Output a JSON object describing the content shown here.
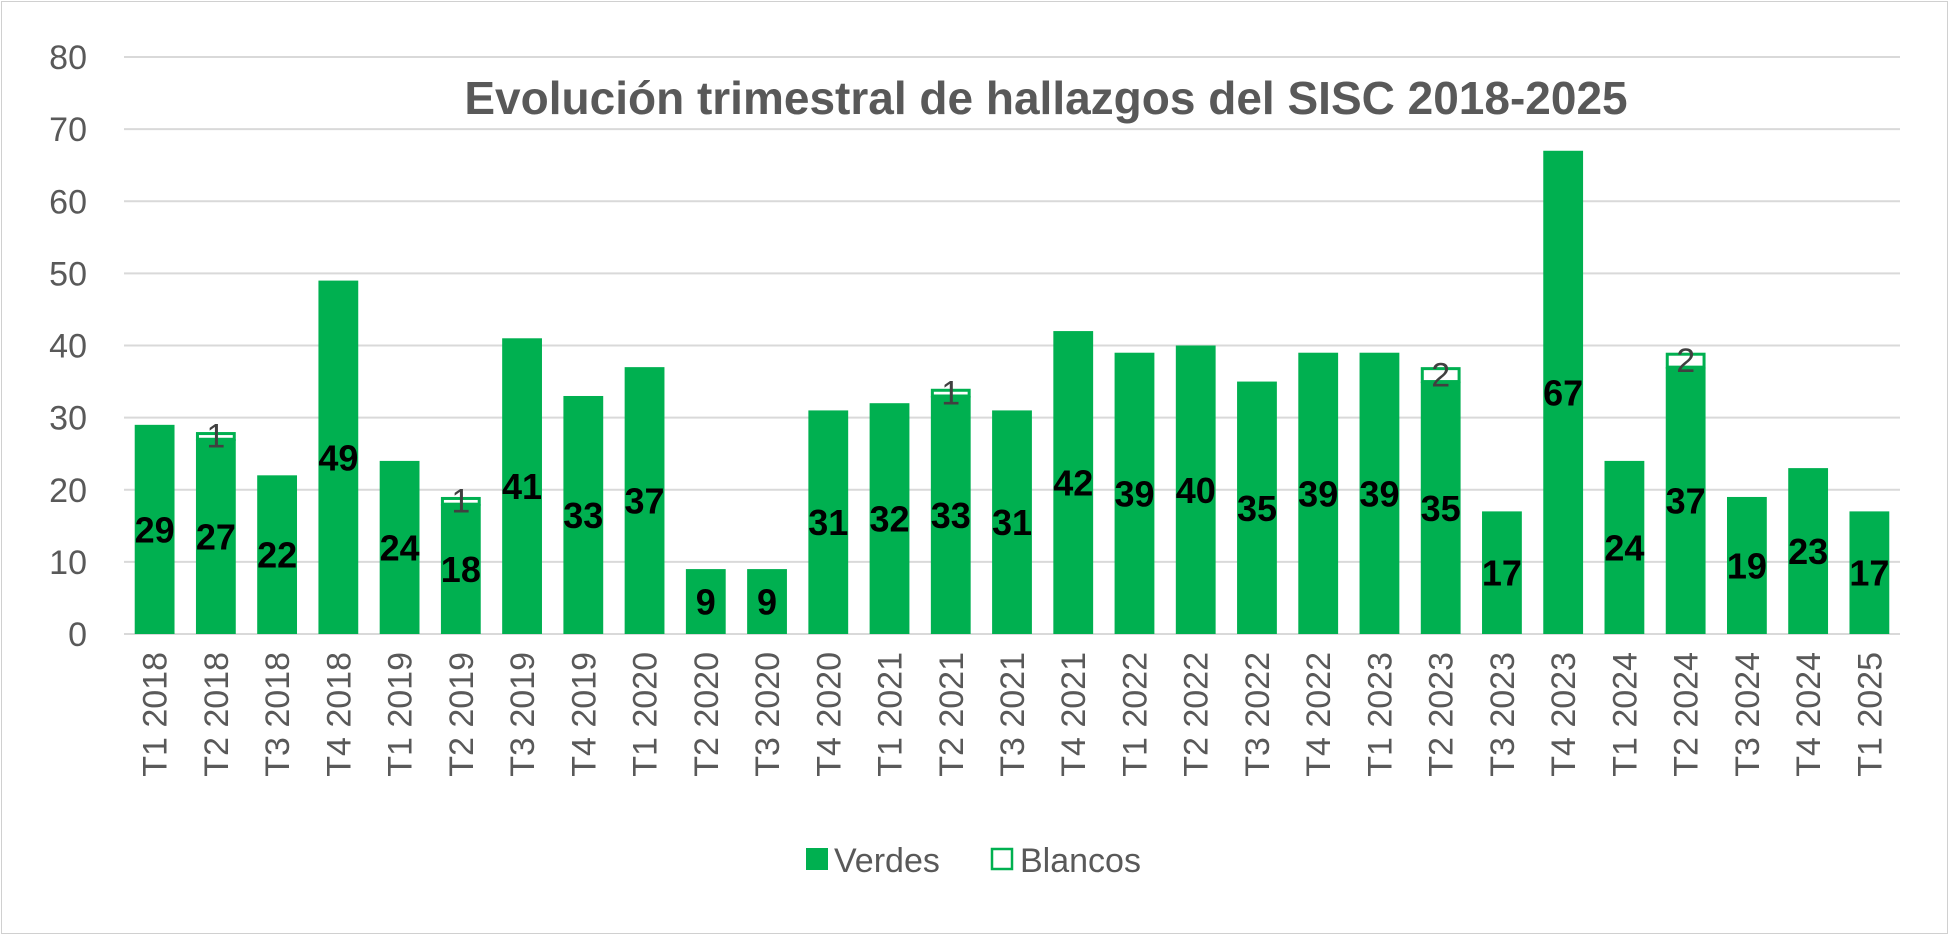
{
  "chart_data": {
    "type": "bar",
    "stacked": true,
    "title": "Evolución trimestral de hallazgos del SISC 2018-2025",
    "xlabel": "",
    "ylabel": "",
    "ylim": [
      0,
      80
    ],
    "yticks": [
      0,
      10,
      20,
      30,
      40,
      50,
      60,
      70,
      80
    ],
    "grid": true,
    "legend_position": "bottom",
    "categories": [
      "T1 2018",
      "T2 2018",
      "T3 2018",
      "T4 2018",
      "T1 2019",
      "T2 2019",
      "T3 2019",
      "T4 2019",
      "T1 2020",
      "T2 2020",
      "T3 2020",
      "T4 2020",
      "T1 2021",
      "T2 2021",
      "T3 2021",
      "T4 2021",
      "T1 2022",
      "T2 2022",
      "T3 2022",
      "T4 2022",
      "T1 2023",
      "T2 2023",
      "T3 2023",
      "T4 2023",
      "T1 2024",
      "T2 2024",
      "T3 2024",
      "T4 2024",
      "T1 2025"
    ],
    "series": [
      {
        "name": "Verdes",
        "color": "#00b050",
        "values": [
          29,
          27,
          22,
          49,
          24,
          18,
          41,
          33,
          37,
          9,
          9,
          31,
          32,
          33,
          31,
          42,
          39,
          40,
          35,
          39,
          39,
          35,
          17,
          67,
          24,
          37,
          19,
          23,
          17
        ]
      },
      {
        "name": "Blancos",
        "color": "#ffffff",
        "stroke": "#00b050",
        "values": [
          0,
          1,
          0,
          0,
          0,
          1,
          0,
          0,
          0,
          0,
          0,
          0,
          0,
          1,
          0,
          0,
          0,
          0,
          0,
          0,
          0,
          2,
          0,
          0,
          0,
          2,
          0,
          0,
          0
        ]
      }
    ]
  }
}
